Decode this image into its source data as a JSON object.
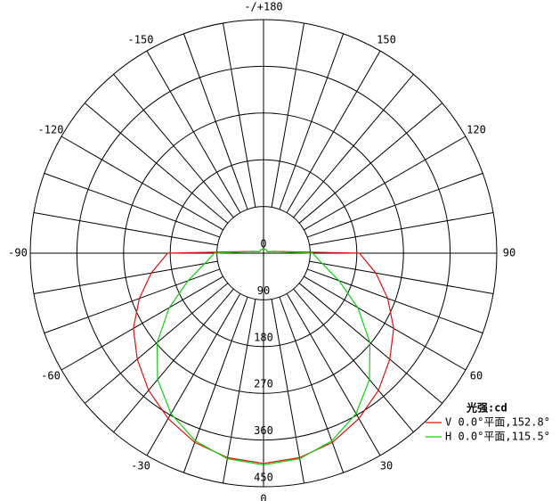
{
  "chart_data": {
    "type": "polar",
    "theta": [
      -180,
      -170,
      -160,
      -150,
      -140,
      -130,
      -120,
      -110,
      -100,
      -90,
      -80,
      -70,
      -60,
      -50,
      -40,
      -30,
      -20,
      -10,
      0,
      10,
      20,
      30,
      40,
      50,
      60,
      70,
      80,
      90,
      100,
      110,
      120,
      130,
      140,
      150,
      160,
      170
    ],
    "thetaticks": [
      {
        "value": 180,
        "label": "-/+180"
      },
      150,
      120,
      90,
      60,
      30,
      0,
      -30,
      -60,
      -90,
      -120,
      -150
    ],
    "rlim": [
      0,
      450
    ],
    "rticks": [
      0,
      90,
      180,
      270,
      360,
      450
    ],
    "legend_title": "光强:cd",
    "series": [
      {
        "name": "V 0.0°平面,152.8°",
        "color": "#e01010",
        "values": [
          8,
          8,
          8,
          8,
          8,
          8,
          8,
          8,
          20,
          185,
          220,
          255,
          290,
          318,
          345,
          368,
          388,
          400,
          405,
          400,
          388,
          368,
          345,
          318,
          290,
          255,
          220,
          185,
          20,
          8,
          8,
          8,
          8,
          8,
          8,
          8
        ]
      },
      {
        "name": "H 0.0°平面,115.5°",
        "color": "#10d010",
        "values": [
          8,
          8,
          8,
          8,
          8,
          8,
          8,
          8,
          20,
          95,
          115,
          155,
          210,
          268,
          318,
          357,
          385,
          402,
          408,
          402,
          385,
          357,
          318,
          268,
          210,
          155,
          115,
          95,
          20,
          8,
          8,
          8,
          8,
          8,
          8,
          8
        ]
      }
    ]
  }
}
